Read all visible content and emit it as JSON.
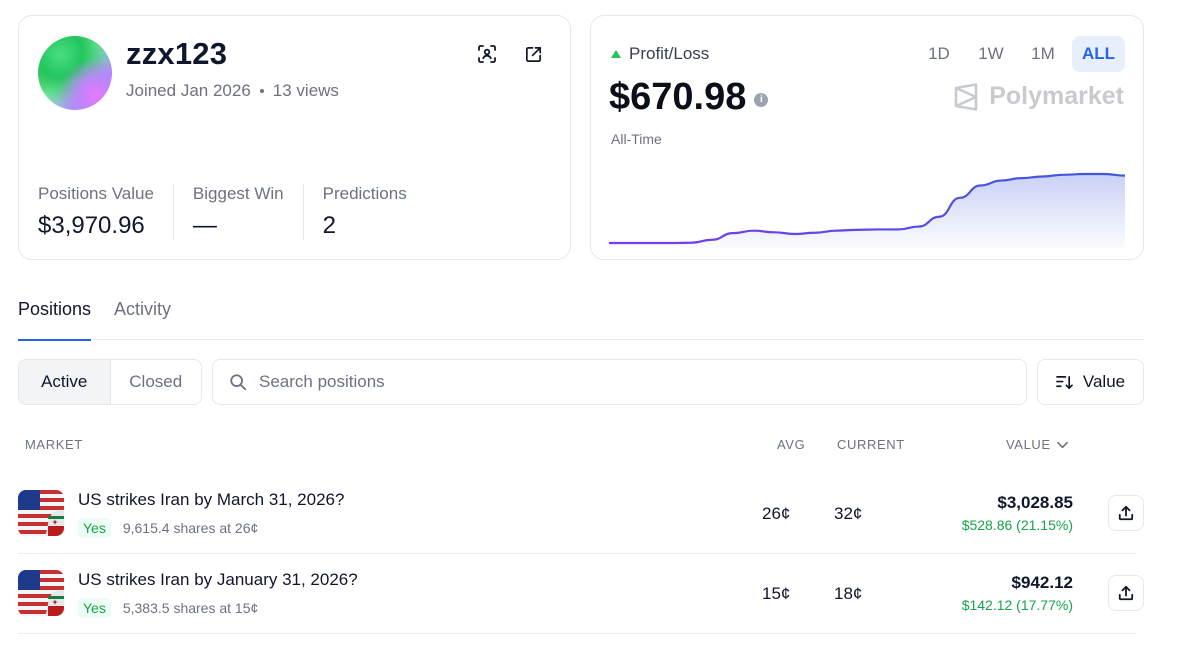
{
  "profile": {
    "username": "zzx123",
    "joined": "Joined Jan 2026",
    "views": "13 views",
    "icons": {
      "scan": "scan-profile-icon",
      "external": "external-link-icon"
    },
    "stats": [
      {
        "label": "Positions Value",
        "value": "$3,970.96"
      },
      {
        "label": "Biggest Win",
        "value": "—"
      },
      {
        "label": "Predictions",
        "value": "2"
      }
    ]
  },
  "pnl": {
    "label": "Profit/Loss",
    "amount": "$670.98",
    "period": "All-Time",
    "brand": "Polymarket",
    "ranges": [
      "1D",
      "1W",
      "1M",
      "ALL"
    ],
    "active_range": "ALL",
    "trend_color": "#22c55e",
    "chart": {
      "type": "area",
      "values": [
        0,
        0,
        0,
        0,
        0.3,
        4,
        12,
        15,
        13,
        11,
        12.5,
        15,
        16,
        16.5,
        16.5,
        20,
        32,
        55,
        70,
        76,
        79,
        81,
        83,
        84,
        84,
        82
      ],
      "line_gradient": [
        "#7c3aed",
        "#3b5bdb"
      ],
      "fill_color": "#3b5bdb"
    }
  },
  "tabs": [
    {
      "label": "Positions",
      "active": true
    },
    {
      "label": "Activity",
      "active": false
    }
  ],
  "filter": {
    "segments": [
      {
        "label": "Active",
        "active": true
      },
      {
        "label": "Closed",
        "active": false
      }
    ],
    "search_placeholder": "Search positions",
    "sort_label": "Value"
  },
  "table": {
    "headers": {
      "market": "MARKET",
      "avg": "AVG",
      "current": "CURRENT",
      "value": "VALUE"
    },
    "rows": [
      {
        "title": "US strikes Iran by March 31, 2026?",
        "outcome": "Yes",
        "shares": "9,615.4 shares at 26¢",
        "avg": "26¢",
        "current": "32¢",
        "value": "$3,028.85",
        "pnl": "$528.86 (21.15%)"
      },
      {
        "title": "US strikes Iran by January 31, 2026?",
        "outcome": "Yes",
        "shares": "5,383.5 shares at 15¢",
        "avg": "15¢",
        "current": "18¢",
        "value": "$942.12",
        "pnl": "$142.12 (17.77%)"
      }
    ]
  },
  "colors": {
    "accent": "#2563eb",
    "positive": "#16a34a"
  }
}
